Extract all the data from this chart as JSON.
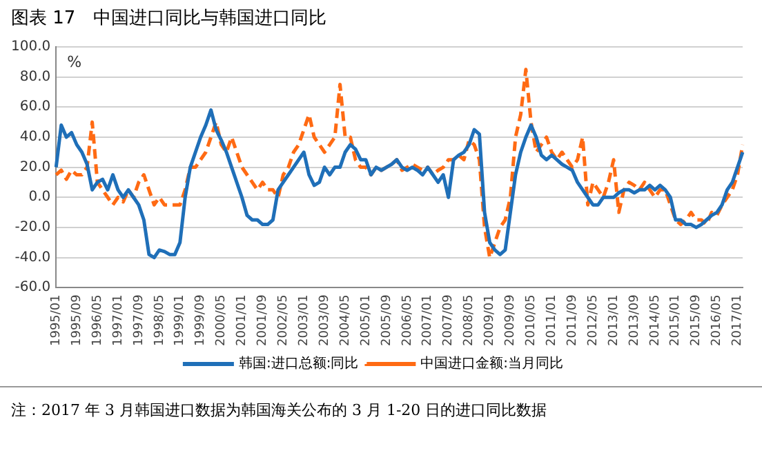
{
  "chart_data": {
    "type": "line",
    "title": "图表 17　中国进口同比与韩国进口同比",
    "ylabel": "%",
    "categories": [
      "1995/01",
      null,
      null,
      null,
      "1995/09",
      null,
      null,
      null,
      "1996/05",
      null,
      null,
      null,
      "1997/01",
      null,
      null,
      null,
      "1997/09",
      null,
      null,
      null,
      "1998/05",
      null,
      null,
      null,
      "1999/01",
      null,
      null,
      null,
      "1999/09",
      null,
      null,
      null,
      "2000/05",
      null,
      null,
      null,
      "2001/01",
      null,
      null,
      null,
      "2001/09",
      null,
      null,
      null,
      "2002/05",
      null,
      null,
      null,
      "2003/01",
      null,
      null,
      null,
      "2003/09",
      null,
      null,
      null,
      "2004/05",
      null,
      null,
      null,
      "2005/01",
      null,
      null,
      null,
      "2005/09",
      null,
      null,
      null,
      "2006/05",
      null,
      null,
      null,
      "2007/01",
      null,
      null,
      null,
      "2007/09",
      null,
      null,
      null,
      "2008/05",
      null,
      null,
      null,
      "2009/01",
      null,
      null,
      null,
      "2009/09",
      null,
      null,
      null,
      "2010/05",
      null,
      null,
      null,
      "2011/01",
      null,
      null,
      null,
      "2011/09",
      null,
      null,
      null,
      "2012/05",
      null,
      null,
      null,
      "2013/01",
      null,
      null,
      null,
      "2013/09",
      null,
      null,
      null,
      "2014/05",
      null,
      null,
      null,
      "2015/01",
      null,
      null,
      null,
      "2015/09",
      null,
      null,
      null,
      "2016/05",
      null,
      null,
      null,
      "2017/01",
      null
    ],
    "series": [
      {
        "name": "韩国:进口总额:同比",
        "color": "#1f6fb8",
        "line_style": "solid",
        "values": [
          20,
          48,
          40,
          43,
          35,
          30,
          22,
          5,
          10,
          12,
          5,
          15,
          5,
          0,
          5,
          0,
          -5,
          -15,
          -38,
          -40,
          -35,
          -36,
          -38,
          -38,
          -30,
          0,
          20,
          30,
          40,
          48,
          58,
          45,
          38,
          30,
          20,
          10,
          0,
          -12,
          -15,
          -15,
          -18,
          -18,
          -15,
          5,
          10,
          15,
          20,
          25,
          30,
          15,
          8,
          10,
          20,
          15,
          20,
          20,
          30,
          35,
          32,
          25,
          25,
          15,
          20,
          18,
          20,
          22,
          25,
          20,
          18,
          20,
          18,
          15,
          20,
          15,
          10,
          15,
          0,
          25,
          28,
          30,
          35,
          45,
          42,
          -10,
          -30,
          -35,
          -38,
          -35,
          -10,
          15,
          30,
          40,
          48,
          40,
          28,
          25,
          28,
          25,
          22,
          20,
          18,
          10,
          5,
          0,
          -5,
          -5,
          0,
          0,
          0,
          3,
          5,
          5,
          3,
          5,
          5,
          8,
          5,
          8,
          5,
          0,
          -15,
          -15,
          -18,
          -18,
          -20,
          -18,
          -15,
          -12,
          -10,
          -5,
          5,
          10,
          20,
          30
        ]
      },
      {
        "name": "中国进口金额:当月同比",
        "color": "#ff6a13",
        "line_style": "dashed",
        "values": [
          15,
          18,
          12,
          18,
          15,
          15,
          20,
          50,
          10,
          5,
          0,
          -5,
          0,
          -3,
          5,
          0,
          10,
          15,
          5,
          -5,
          0,
          -5,
          -5,
          -5,
          -5,
          5,
          20,
          20,
          25,
          30,
          40,
          50,
          35,
          30,
          40,
          30,
          20,
          15,
          10,
          5,
          10,
          5,
          5,
          0,
          15,
          20,
          30,
          35,
          45,
          55,
          40,
          35,
          30,
          35,
          40,
          75,
          40,
          40,
          25,
          20,
          20,
          15,
          20,
          18,
          20,
          22,
          25,
          18,
          20,
          22,
          20,
          18,
          20,
          15,
          18,
          20,
          25,
          25,
          28,
          25,
          38,
          35,
          25,
          -20,
          -40,
          -30,
          -20,
          -15,
          0,
          40,
          55,
          85,
          50,
          30,
          35,
          40,
          30,
          25,
          30,
          25,
          20,
          25,
          40,
          -5,
          10,
          5,
          0,
          10,
          25,
          -10,
          5,
          10,
          8,
          5,
          10,
          5,
          0,
          5,
          5,
          -5,
          -15,
          -18,
          -15,
          -10,
          -15,
          -15,
          -18,
          -10,
          -12,
          -5,
          0,
          5,
          15,
          35
        ]
      }
    ],
    "ylim": [
      -60,
      100
    ],
    "yticks": [
      {
        "value": -60,
        "label": "-60.0"
      },
      {
        "value": -40,
        "label": "-40.0"
      },
      {
        "value": -20,
        "label": "-20.0"
      },
      {
        "value": 0,
        "label": "0.0"
      },
      {
        "value": 20,
        "label": "20.0"
      },
      {
        "value": 40,
        "label": "40.0"
      },
      {
        "value": 60,
        "label": "60.0"
      },
      {
        "value": 80,
        "label": "80.0"
      },
      {
        "value": 100,
        "label": "100.0"
      }
    ],
    "grid": "y",
    "legend": "bottom",
    "marker": "none",
    "annotations": [
      "注：2017 年 3 月韩国进口数据为韩国海关公布的 3 月 1-20 日的进口同比数据"
    ]
  }
}
